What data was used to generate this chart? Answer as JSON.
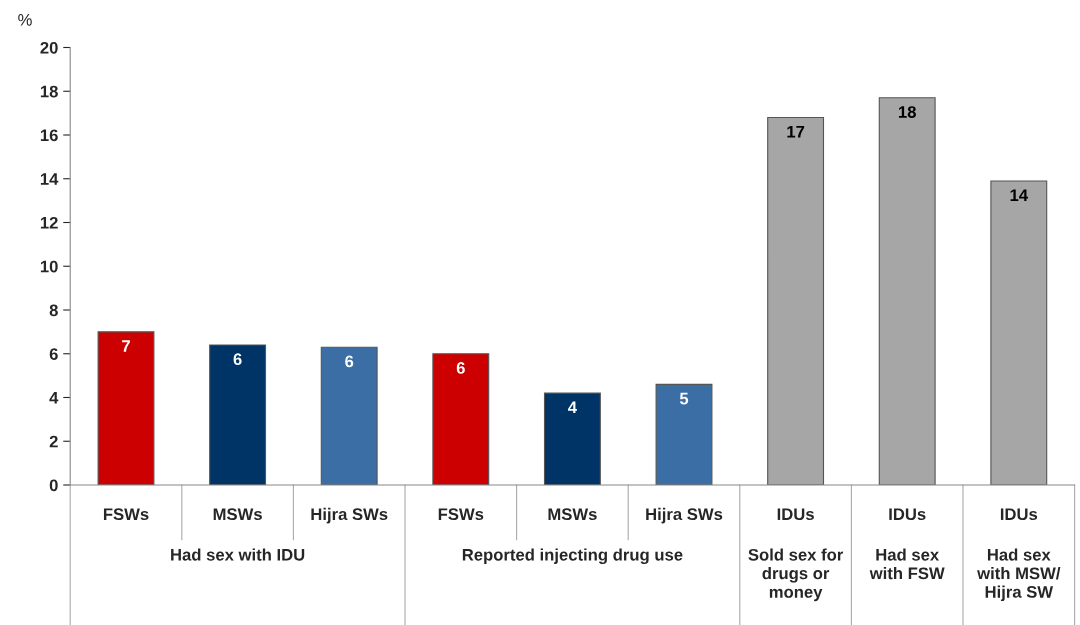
{
  "chart_data": {
    "type": "bar",
    "ylabel": "%",
    "categories": [
      "FSWs",
      "MSWs",
      "Hijra SWs",
      "FSWs",
      "MSWs",
      "Hijra SWs",
      "IDUs",
      "IDUs",
      "IDUs"
    ],
    "values": [
      7.0,
      6.4,
      6.3,
      6.0,
      4.2,
      4.6,
      16.8,
      17.7,
      13.9
    ],
    "colors": [
      "#cc0000",
      "#003366",
      "#3a6ea5",
      "#cc0000",
      "#003366",
      "#3a6ea5",
      "#a6a6a6",
      "#a6a6a6",
      "#a6a6a6"
    ],
    "value_labels": [
      "7",
      "6",
      "6",
      "6",
      "4",
      "5",
      "17",
      "18",
      "14"
    ],
    "ylim": [
      0,
      20
    ],
    "yticks": [
      0,
      2,
      4,
      6,
      8,
      10,
      12,
      14,
      16,
      18,
      20
    ],
    "annotations": [
      "Had sex with IDU",
      "Reported injecting drug use",
      "Sold sex for\ndrugs or\nmoney",
      "Had sex\nwith FSW",
      "Had sex\nwith MSW/\nHijra SW"
    ],
    "grid": false,
    "legend": false
  }
}
